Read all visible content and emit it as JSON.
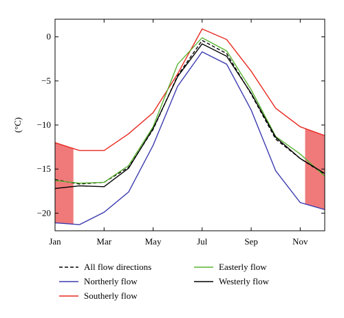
{
  "chart_data": {
    "type": "line",
    "title": "",
    "xlabel": "",
    "ylabel": "(°C)",
    "x": [
      1,
      2,
      3,
      4,
      5,
      6,
      7,
      8,
      9,
      10,
      11,
      12
    ],
    "xticks": [
      1,
      3,
      5,
      7,
      9,
      11
    ],
    "xtick_labels": [
      "Jan",
      "Mar",
      "May",
      "Jul",
      "Sep",
      "Nov"
    ],
    "xlim": [
      1,
      12
    ],
    "yticks": [
      0,
      -5,
      -10,
      -15,
      -20
    ],
    "ytick_labels": [
      "0",
      "−5",
      "−10",
      "−15",
      "−20"
    ],
    "ylim": [
      -22,
      2
    ],
    "grid": false,
    "legend_position": "bottom",
    "series": [
      {
        "name": "All flow directions",
        "color": "#000000",
        "dash": "dashed",
        "values": [
          -16.2,
          -16.7,
          -16.5,
          -14.8,
          -10.5,
          -4.4,
          -0.4,
          -1.9,
          -6.5,
          -11.6,
          -13.8,
          -15.6
        ]
      },
      {
        "name": "Northerly flow",
        "color": "#3b3bb0",
        "dash": "solid",
        "values": [
          -21.1,
          -21.3,
          -19.9,
          -17.6,
          -12.3,
          -5.6,
          -1.7,
          -3.1,
          -8.3,
          -15.2,
          -18.8,
          -19.6
        ]
      },
      {
        "name": "Southerly flow",
        "color": "#e8281e",
        "dash": "solid",
        "values": [
          -12.0,
          -12.9,
          -12.9,
          -11.0,
          -8.6,
          -4.2,
          0.9,
          -0.3,
          -3.9,
          -8.1,
          -10.2,
          -11.2
        ]
      },
      {
        "name": "Easterly flow",
        "color": "#5ab432",
        "dash": "solid",
        "values": [
          -16.3,
          -16.6,
          -16.5,
          -14.6,
          -10.2,
          -3.1,
          -0.1,
          -1.6,
          -6.0,
          -11.3,
          -13.3,
          -15.8
        ]
      },
      {
        "name": "Westerly flow",
        "color": "#000000",
        "dash": "solid",
        "values": [
          -17.2,
          -16.9,
          -17.0,
          -14.9,
          -10.4,
          -4.5,
          -0.8,
          -2.2,
          -6.4,
          -11.4,
          -13.8,
          -15.5
        ]
      }
    ],
    "shaded_regions": [
      {
        "color": "#f07a7a",
        "x_range": [
          1,
          1.75
        ],
        "upper_series": "Southerly flow",
        "lower_series": "Northerly flow"
      },
      {
        "color": "#f07a7a",
        "x_range": [
          11.2,
          12
        ],
        "upper_series": "Southerly flow",
        "lower_series": "Northerly flow"
      }
    ]
  }
}
